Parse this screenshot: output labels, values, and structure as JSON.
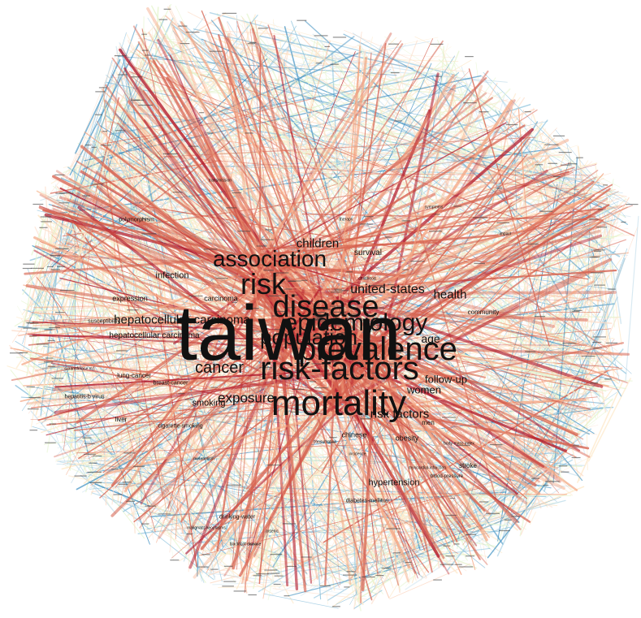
{
  "graph": {
    "edge_colors": [
      "#d6604d",
      "#f4a582",
      "#fddbc7",
      "#fee8c8",
      "#e6f5d0",
      "#d1e5f0",
      "#92c5de",
      "#4393c3",
      "#b2182b"
    ],
    "terms": {
      "taiwan": "taiwan",
      "mortality": "mortality",
      "risk_factors_big": "risk-factors",
      "disease": "disease",
      "risk": "risk",
      "association": "association",
      "prevalence": "prevalence",
      "epidemiology": "epidemiology",
      "population": "population",
      "cancer": "cancer",
      "united_states": "united-states",
      "health": "health",
      "children": "children",
      "exposure": "exposure",
      "hepatocellular_carcinoma_big": "hepatocellular-carcinoma",
      "women": "women",
      "follow_up": "follow-up",
      "risk_factors_small": "risk factors",
      "age": "age",
      "smoking": "smoking",
      "infection": "infection",
      "survival": "survival",
      "carcinoma": "carcinoma",
      "expression": "expression",
      "hepatocellular_carcinoma_small": "hepatocellular carcinoma",
      "lung_cancer": "lung-cancer",
      "breast_cancer": "breast-cancer",
      "hepatitis_b_virus": "hepatitis-b virus",
      "liver": "liver",
      "cigarette_smoking": "cigarette-smoking",
      "chinese": "chinese",
      "obesity": "obesity",
      "men": "men",
      "hypertension": "hypertension",
      "stroke": "stroke",
      "diabetes_mellitus": "diabetes-mellitus",
      "drinking_water": "drinking-water",
      "community": "community",
      "polymorphism": "polymorphism",
      "myocardial_infarction": "myocardial-infarction",
      "blood_pressure": "blood-pressure",
      "body_mass_index": "body-mass index",
      "arsenic": "arsenic",
      "metabolism": "metabolism",
      "incidence": "incidence",
      "consumption": "consumption",
      "transmission": "transmission",
      "symptoms": "symptoms",
      "therapy": "therapy",
      "impact": "impact",
      "childhood": "childhood",
      "malignant_neoplasms": "malignant-neoplasms",
      "blackfoot_disease": "blackfoot disease",
      "susceptibility": "susceptibility",
      "s_transferase": "s-transferase m1"
    }
  }
}
